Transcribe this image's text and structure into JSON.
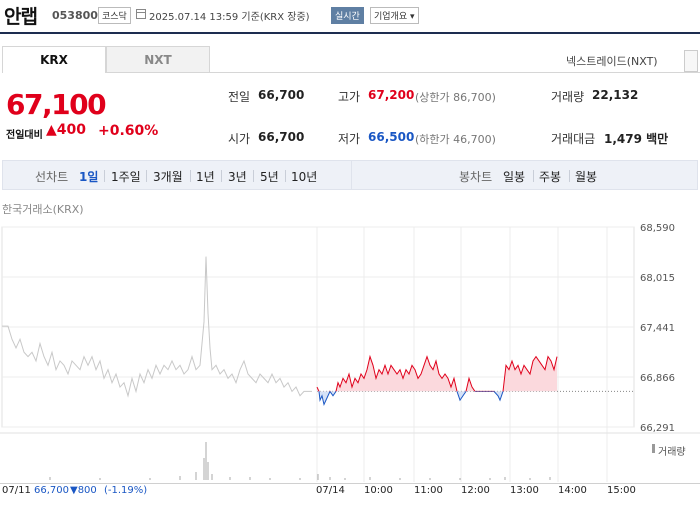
{
  "header": {
    "name": "안랩",
    "code": "053800",
    "market": "코스닥",
    "datetime": "2025.07.14 13:59 기준(KRX 장중)",
    "realtime": "실시간",
    "company_info": "기업개요 ▾"
  },
  "tabs": {
    "krx": "KRX",
    "nxt": "NXT",
    "nxt_link": "넥스트레이드(NXT)"
  },
  "price": {
    "current": "67,100",
    "change_label": "전일대비",
    "change": "▲400",
    "change_pct": "+0.60%"
  },
  "stats": {
    "prev_label": "전일",
    "prev": "66,700",
    "open_label": "시가",
    "open": "66,700",
    "high_label": "고가",
    "high": "67,200",
    "upper_limit": "(상한가 86,700)",
    "low_label": "저가",
    "low": "66,500",
    "lower_limit": "(하한가 46,700)",
    "volume_label": "거래량",
    "volume": "22,132",
    "amount_label": "거래대금",
    "amount": "1,479 백만"
  },
  "period": {
    "line_label": "선차트",
    "options": [
      "1일",
      "1주일",
      "3개월",
      "1년",
      "3년",
      "5년",
      "10년"
    ],
    "selected": "1일",
    "candle_label": "봉차트",
    "candle_options": [
      "일봉",
      "주봉",
      "월봉"
    ]
  },
  "chart_data": {
    "type": "line",
    "source": "한국거래소(KRX)",
    "y_ticks": [
      "68,590",
      "68,015",
      "67,441",
      "66,866",
      "66,291"
    ],
    "ylim": [
      66291,
      68590
    ],
    "reference": 66700,
    "x_ticks": [
      "07/14",
      "10:00",
      "11:00",
      "12:00",
      "13:00",
      "14:00",
      "15:00"
    ],
    "prev_day": {
      "date": "07/11",
      "close": "66,700",
      "change": "▼800",
      "pct": "(-1.19%)"
    },
    "volume_legend": "거래량",
    "colors": {
      "up": "#e0001b",
      "down": "#1a57c4",
      "prev": "#c8c8c8"
    }
  }
}
